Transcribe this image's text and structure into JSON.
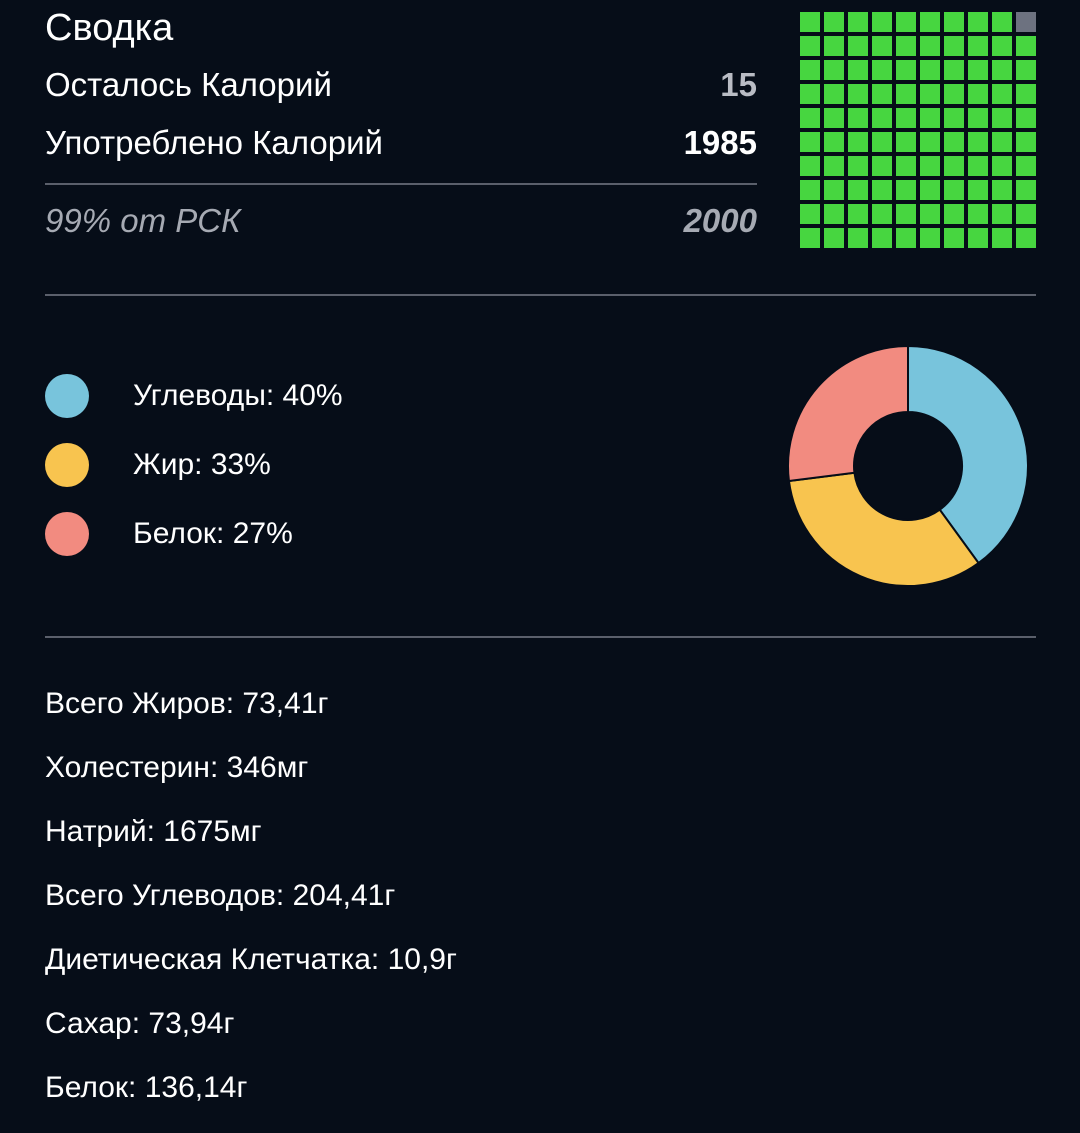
{
  "summary": {
    "title": "Сводка",
    "remaining_label": "Осталось Калорий",
    "remaining_value": "15",
    "consumed_label": "Употреблено Калорий",
    "consumed_value": "1985",
    "rdi_label": "99% от РСК",
    "rdi_value": "2000",
    "grid_filled_fraction": 0.99,
    "grid_filled_color": "#47d640",
    "grid_empty_color": "#6d7280"
  },
  "macros": {
    "items": [
      {
        "text": "Углеводы: 40%",
        "color": "#78c4dc",
        "percent": 40
      },
      {
        "text": "Жир: 33%",
        "color": "#f8c44f",
        "percent": 33
      },
      {
        "text": "Белок: 27%",
        "color": "#f28b80",
        "percent": 27
      }
    ]
  },
  "nutrients": [
    "Всего Жиров: 73,41г",
    "Холестерин: 346мг",
    "Натрий: 1675мг",
    "Всего Углеводов: 204,41г",
    "Диетическая Клетчатка: 10,9г",
    "Сахар: 73,94г",
    "Белок: 136,14г"
  ]
}
